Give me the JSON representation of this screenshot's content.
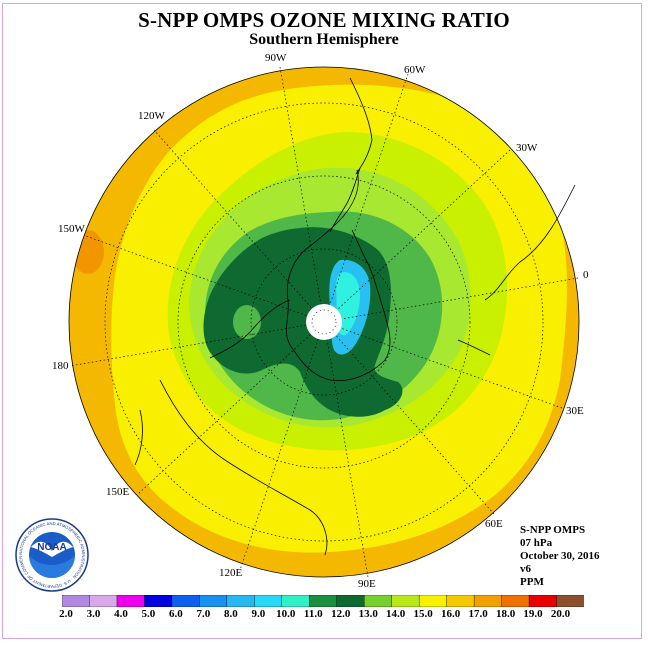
{
  "header": {
    "title": "S-NPP OMPS OZONE MIXING RATIO",
    "subtitle": "Southern Hemisphere"
  },
  "map": {
    "projection": "south-polar-stereographic",
    "longitude_labels": [
      "90W",
      "60W",
      "30W",
      "0",
      "30E",
      "60E",
      "90E",
      "120E",
      "150E",
      "180",
      "150W",
      "120W"
    ],
    "colors": {
      "outer_orange": "#f5b800",
      "dark_orange": "#f29600",
      "yellow": "#f8f000",
      "yellow_green": "#c8f000",
      "light_green": "#a8e830",
      "green": "#50b848",
      "dark_green": "#0e6a30",
      "cyan": "#30f0e0",
      "light_blue": "#28c0f0",
      "polar_hole": "#ffffff"
    }
  },
  "info": {
    "instrument": "S-NPP OMPS",
    "level": "07 hPa",
    "date": "October 30, 2016",
    "version": "v6",
    "units": "PPM"
  },
  "colorbar": {
    "labels": [
      "2.0",
      "3.0",
      "4.0",
      "5.0",
      "6.0",
      "7.0",
      "8.0",
      "9.0",
      "10.0",
      "11.0",
      "12.0",
      "13.0",
      "14.0",
      "15.0",
      "16.0",
      "17.0",
      "18.0",
      "19.0",
      "20.0"
    ],
    "colors": [
      "#b08ae0",
      "#d8a8e8",
      "#ee00ee",
      "#0000e0",
      "#1060f0",
      "#1890f0",
      "#28b8f0",
      "#28d8f8",
      "#30f0c8",
      "#189040",
      "#0e6a30",
      "#78d030",
      "#b8e818",
      "#f8f000",
      "#f5c800",
      "#f2a000",
      "#f07000",
      "#e80000",
      "#8c5030"
    ]
  },
  "logo": {
    "text": "NOAA",
    "ring_text": "NATIONAL OCEANIC AND ATMOSPHERIC ADMINISTRATION · U.S. DEPARTMENT OF COMMERCE"
  }
}
